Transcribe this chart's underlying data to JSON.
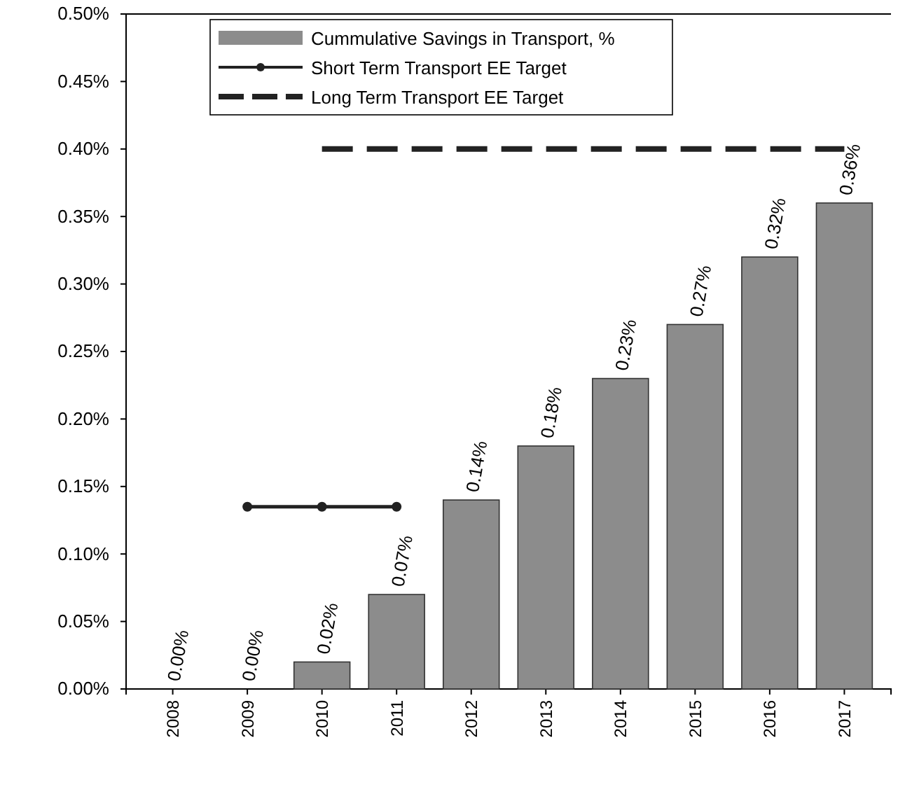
{
  "chart_data": {
    "type": "bar",
    "categories": [
      "2008",
      "2009",
      "2010",
      "2011",
      "2012",
      "2013",
      "2014",
      "2015",
      "2016",
      "2017"
    ],
    "ylim": [
      0,
      0.5
    ],
    "yticks": [
      {
        "value": 0,
        "label": "0.00%"
      },
      {
        "value": 0.05,
        "label": "0.05%"
      },
      {
        "value": 0.1,
        "label": "0.10%"
      },
      {
        "value": 0.15,
        "label": "0.15%"
      },
      {
        "value": 0.2,
        "label": "0.20%"
      },
      {
        "value": 0.25,
        "label": "0.25%"
      },
      {
        "value": 0.3,
        "label": "0.30%"
      },
      {
        "value": 0.35,
        "label": "0.35%"
      },
      {
        "value": 0.4,
        "label": "0.40%"
      },
      {
        "value": 0.45,
        "label": "0.45%"
      },
      {
        "value": 0.5,
        "label": "0.50%"
      }
    ],
    "legend": "top",
    "grid": false,
    "series": [
      {
        "name": "Cummulative Savings in Transport, %",
        "color": "#8c8c8c",
        "values": [
          0,
          0,
          0.02,
          0.07,
          0.14,
          0.18,
          0.23,
          0.27,
          0.32,
          0.36
        ],
        "value_labels": [
          "0.00%",
          "0.00%",
          "0.02%",
          "0.07%",
          "0.14%",
          "0.18%",
          "0.23%",
          "0.27%",
          "0.32%",
          "0.36%"
        ]
      },
      {
        "name": "Short Term Transport EE Target",
        "type": "line",
        "color": "#222222",
        "marker": "circle",
        "line_style": "solid",
        "values": [
          null,
          0.135,
          0.135,
          0.135,
          null,
          null,
          null,
          null,
          null,
          null
        ]
      },
      {
        "name": "Long Term Transport EE Target",
        "type": "line",
        "color": "#222222",
        "marker": "none",
        "line_style": "dashed",
        "values": [
          null,
          null,
          0.4,
          0.4,
          0.4,
          0.4,
          0.4,
          0.4,
          0.4,
          0.4
        ]
      }
    ]
  }
}
